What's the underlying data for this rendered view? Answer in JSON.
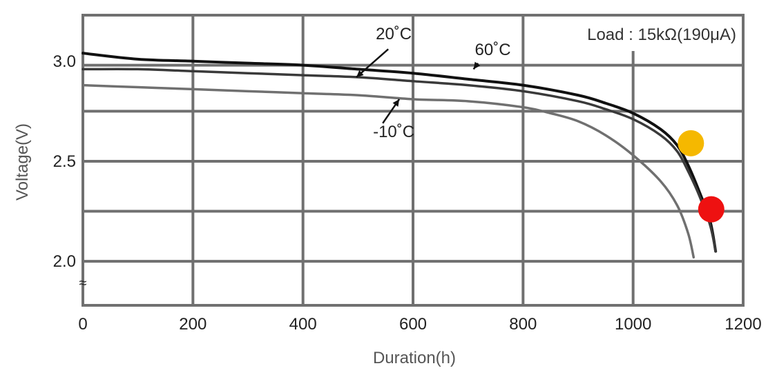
{
  "chart_data": {
    "type": "line",
    "title": "",
    "xlabel": "Duration(h)",
    "ylabel": "Voltage(V)",
    "xlim": [
      0,
      1200
    ],
    "ylim": [
      1.78,
      3.23
    ],
    "x_ticks": [
      0,
      200,
      400,
      600,
      800,
      1000,
      1200
    ],
    "x_tick_labels": [
      "0",
      "200",
      "400",
      "600",
      "800",
      "1000",
      "1200"
    ],
    "y_ticks": [
      2.0,
      2.5,
      3.0
    ],
    "y_tick_labels": [
      "2.0",
      "2.5",
      "3.0"
    ],
    "h_gridlines": [
      2.0,
      2.25,
      2.5,
      2.75,
      2.98
    ],
    "v_gridlines": [
      200,
      400,
      600,
      800,
      1000
    ],
    "axis_break_symbol": "≈",
    "grid": true,
    "load_label": "Load : 15kΩ(190μA)",
    "series": [
      {
        "name": "60˚C",
        "color": "#111111",
        "x": [
          0,
          100,
          200,
          300,
          400,
          500,
          600,
          700,
          800,
          900,
          950,
          1000,
          1050,
          1080,
          1100,
          1120,
          1140,
          1150
        ],
        "y": [
          3.04,
          3.01,
          3.0,
          2.99,
          2.98,
          2.96,
          2.94,
          2.91,
          2.88,
          2.83,
          2.79,
          2.74,
          2.66,
          2.58,
          2.48,
          2.35,
          2.2,
          2.05
        ]
      },
      {
        "name": "20˚C",
        "color": "#3a3a3a",
        "x": [
          0,
          100,
          200,
          300,
          400,
          500,
          600,
          700,
          800,
          900,
          950,
          1000,
          1050,
          1080,
          1100,
          1120,
          1140,
          1150
        ],
        "y": [
          2.96,
          2.96,
          2.95,
          2.94,
          2.93,
          2.92,
          2.9,
          2.88,
          2.85,
          2.8,
          2.76,
          2.71,
          2.63,
          2.55,
          2.45,
          2.33,
          2.18,
          2.05
        ]
      },
      {
        "name": "-10˚C",
        "color": "#707070",
        "x": [
          0,
          100,
          200,
          300,
          400,
          500,
          600,
          700,
          800,
          850,
          900,
          950,
          1000,
          1050,
          1080,
          1100,
          1110
        ],
        "y": [
          2.88,
          2.87,
          2.86,
          2.85,
          2.84,
          2.83,
          2.81,
          2.8,
          2.77,
          2.74,
          2.7,
          2.63,
          2.53,
          2.4,
          2.28,
          2.14,
          2.02
        ]
      }
    ],
    "annotations": [
      {
        "text": "20˚C",
        "label_x": 565,
        "label_y": 3.11,
        "arrow_from": [
          555,
          3.06
        ],
        "arrow_to": [
          497,
          2.92
        ]
      },
      {
        "text": "60˚C",
        "label_x": 745,
        "label_y": 3.03,
        "arrow_from": [
          718,
          2.99
        ],
        "arrow_to": [
          710,
          2.96
        ]
      },
      {
        "text": "-10˚C",
        "label_x": 565,
        "label_y": 2.62,
        "arrow_from": [
          545,
          2.69
        ],
        "arrow_to": [
          575,
          2.81
        ]
      }
    ],
    "markers": [
      {
        "x": 1105,
        "y": 2.59,
        "color": "#f5b800"
      },
      {
        "x": 1142,
        "y": 2.26,
        "color": "#ee1111"
      }
    ]
  }
}
